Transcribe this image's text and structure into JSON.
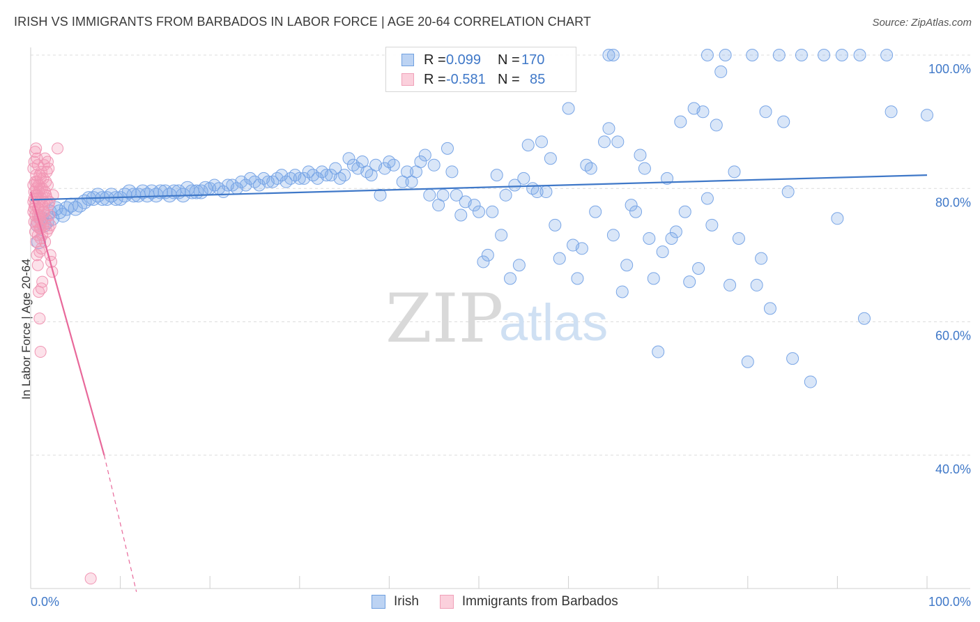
{
  "header": {
    "title": "IRISH VS IMMIGRANTS FROM BARBADOS IN LABOR FORCE | AGE 20-64 CORRELATION CHART",
    "source": "Source: ZipAtlas.com"
  },
  "watermark": {
    "zip": "ZIP",
    "atlas": "atlas"
  },
  "legend_top": {
    "rows": [
      {
        "r_label": "R =",
        "r_value": "0.099",
        "n_label": "N =",
        "n_value": "170",
        "color": "#6fa0e0",
        "fill": "#bcd3f3"
      },
      {
        "r_label": "R =",
        "r_value": "-0.581",
        "n_label": "N =",
        "n_value": "85",
        "color": "#f0a0b8",
        "fill": "#fbd0dc"
      }
    ]
  },
  "legend_bottom": {
    "items": [
      {
        "label": "Irish",
        "color": "#6fa0e0",
        "fill": "#bcd3f3"
      },
      {
        "label": "Immigrants from Barbados",
        "color": "#f0a0b8",
        "fill": "#fbd0dc"
      }
    ]
  },
  "chart_data": {
    "type": "scatter",
    "ylabel": "In Labor Force | Age 20-64",
    "xlabel": "",
    "xlim": [
      0,
      100
    ],
    "ylim": [
      20,
      100
    ],
    "x_tick_labels": [
      "0.0%",
      "100.0%"
    ],
    "y_ticks": [
      40,
      60,
      80,
      100
    ],
    "y_tick_labels": [
      "40.0%",
      "60.0%",
      "80.0%",
      "100.0%"
    ],
    "grid": "horizontal dashed",
    "colors": {
      "irish": "#3f78c8",
      "irish_fill": "rgba(120,165,230,0.28)",
      "irish_edge": "#78a5e6",
      "barbados": "#e8689a",
      "barbados_fill": "rgba(245,150,180,0.28)",
      "barbados_edge": "#f096b4"
    },
    "series": [
      {
        "name": "Irish",
        "trend": {
          "x0": 0,
          "y0": 78.3,
          "x1": 100,
          "y1": 82.0
        },
        "points": [
          [
            0.8,
            74.5
          ],
          [
            0.9,
            72.0
          ],
          [
            1.2,
            75.5
          ],
          [
            1.5,
            74.5
          ],
          [
            1.8,
            75.0
          ],
          [
            2.1,
            76.5
          ],
          [
            2.4,
            75.5
          ],
          [
            2.8,
            77.0
          ],
          [
            3.2,
            76.5
          ],
          [
            3.6,
            76.0
          ],
          [
            4.0,
            77.0
          ],
          [
            4.5,
            77.5
          ],
          [
            5.0,
            77.0
          ],
          [
            5.5,
            77.5
          ],
          [
            6.0,
            78.0
          ],
          [
            6.5,
            78.5
          ],
          [
            7.0,
            78.5
          ],
          [
            7.5,
            79.0
          ],
          [
            8.0,
            78.5
          ],
          [
            8.5,
            78.5
          ],
          [
            9.0,
            79.0
          ],
          [
            9.5,
            78.5
          ],
          [
            10.0,
            78.5
          ],
          [
            10.5,
            79.0
          ],
          [
            11.0,
            79.5
          ],
          [
            11.5,
            79.0
          ],
          [
            12.0,
            79.0
          ],
          [
            12.5,
            79.5
          ],
          [
            13.0,
            79.0
          ],
          [
            13.5,
            79.5
          ],
          [
            14.0,
            79.0
          ],
          [
            14.5,
            79.5
          ],
          [
            15.0,
            79.5
          ],
          [
            15.5,
            79.0
          ],
          [
            16.0,
            79.5
          ],
          [
            16.5,
            79.5
          ],
          [
            17.0,
            79.0
          ],
          [
            17.5,
            80.0
          ],
          [
            18.0,
            79.5
          ],
          [
            18.5,
            79.5
          ],
          [
            19.0,
            79.5
          ],
          [
            19.5,
            80.0
          ],
          [
            20.0,
            80.0
          ],
          [
            20.5,
            80.5
          ],
          [
            21.0,
            80.0
          ],
          [
            21.5,
            79.5
          ],
          [
            22.0,
            80.5
          ],
          [
            22.5,
            80.5
          ],
          [
            23.0,
            80.0
          ],
          [
            23.5,
            81.0
          ],
          [
            24.0,
            80.5
          ],
          [
            24.5,
            81.5
          ],
          [
            25.0,
            81.0
          ],
          [
            25.5,
            80.5
          ],
          [
            26.0,
            81.5
          ],
          [
            26.5,
            81.0
          ],
          [
            27.0,
            81.0
          ],
          [
            27.5,
            81.5
          ],
          [
            28.0,
            82.0
          ],
          [
            28.5,
            81.0
          ],
          [
            29.0,
            81.5
          ],
          [
            29.5,
            82.0
          ],
          [
            30.0,
            81.5
          ],
          [
            30.5,
            81.5
          ],
          [
            31.0,
            82.5
          ],
          [
            31.5,
            82.0
          ],
          [
            32.0,
            81.5
          ],
          [
            32.5,
            82.5
          ],
          [
            33.0,
            82.0
          ],
          [
            33.5,
            82.0
          ],
          [
            34.0,
            83.0
          ],
          [
            34.5,
            81.5
          ],
          [
            35.0,
            82.0
          ],
          [
            35.5,
            84.5
          ],
          [
            36.0,
            83.5
          ],
          [
            36.5,
            83.0
          ],
          [
            37.0,
            84.0
          ],
          [
            37.5,
            82.5
          ],
          [
            38.0,
            82.0
          ],
          [
            38.5,
            83.5
          ],
          [
            39.0,
            79.0
          ],
          [
            39.5,
            83.0
          ],
          [
            40.0,
            84.0
          ],
          [
            40.5,
            83.5
          ],
          [
            41.5,
            81.0
          ],
          [
            42.0,
            82.5
          ],
          [
            42.5,
            81.0
          ],
          [
            43.0,
            82.5
          ],
          [
            43.5,
            84.0
          ],
          [
            44.0,
            85.0
          ],
          [
            44.5,
            79.0
          ],
          [
            45.0,
            83.5
          ],
          [
            45.5,
            77.5
          ],
          [
            46.0,
            79.0
          ],
          [
            46.5,
            86.0
          ],
          [
            47.0,
            82.5
          ],
          [
            47.5,
            79.0
          ],
          [
            48.0,
            76.0
          ],
          [
            48.5,
            78.0
          ],
          [
            49.5,
            77.5
          ],
          [
            50.0,
            76.5
          ],
          [
            50.5,
            69.0
          ],
          [
            51.0,
            70.0
          ],
          [
            51.5,
            76.5
          ],
          [
            52.0,
            82.0
          ],
          [
            52.5,
            73.0
          ],
          [
            53.0,
            79.0
          ],
          [
            53.5,
            66.5
          ],
          [
            54.0,
            80.5
          ],
          [
            54.5,
            68.5
          ],
          [
            55.0,
            81.5
          ],
          [
            55.5,
            86.5
          ],
          [
            56.0,
            80.0
          ],
          [
            56.5,
            79.5
          ],
          [
            57.0,
            87.0
          ],
          [
            57.5,
            79.5
          ],
          [
            58.0,
            84.5
          ],
          [
            58.5,
            74.5
          ],
          [
            59.0,
            69.5
          ],
          [
            60.0,
            92.0
          ],
          [
            60.5,
            71.5
          ],
          [
            61.0,
            66.5
          ],
          [
            61.5,
            71.0
          ],
          [
            62.0,
            83.5
          ],
          [
            62.5,
            83.0
          ],
          [
            63.0,
            76.5
          ],
          [
            64.0,
            87.0
          ],
          [
            64.5,
            89.0
          ],
          [
            65.0,
            73.0
          ],
          [
            65.5,
            87.0
          ],
          [
            66.0,
            64.5
          ],
          [
            66.5,
            68.5
          ],
          [
            67.0,
            77.5
          ],
          [
            67.5,
            76.5
          ],
          [
            68.0,
            85.0
          ],
          [
            68.5,
            83.0
          ],
          [
            69.0,
            72.5
          ],
          [
            69.5,
            66.5
          ],
          [
            70.0,
            55.5
          ],
          [
            70.5,
            70.5
          ],
          [
            71.0,
            81.5
          ],
          [
            71.5,
            72.5
          ],
          [
            72.0,
            73.5
          ],
          [
            72.5,
            90.0
          ],
          [
            73.0,
            76.5
          ],
          [
            73.5,
            66.0
          ],
          [
            74.0,
            92.0
          ],
          [
            74.5,
            68.0
          ],
          [
            75.0,
            91.5
          ],
          [
            75.5,
            78.5
          ],
          [
            76.0,
            74.5
          ],
          [
            76.5,
            89.5
          ],
          [
            77.0,
            97.5
          ],
          [
            77.5,
            100.0
          ],
          [
            78.0,
            65.5
          ],
          [
            78.5,
            82.5
          ],
          [
            79.0,
            72.5
          ],
          [
            80.0,
            54.0
          ],
          [
            80.5,
            100.0
          ],
          [
            81.0,
            65.5
          ],
          [
            81.5,
            69.5
          ],
          [
            82.0,
            91.5
          ],
          [
            82.5,
            62.0
          ],
          [
            83.5,
            100.0
          ],
          [
            84.0,
            90.0
          ],
          [
            84.5,
            79.5
          ],
          [
            85.0,
            54.5
          ],
          [
            86.0,
            100.0
          ],
          [
            87.0,
            51.0
          ],
          [
            88.5,
            100.0
          ],
          [
            90.0,
            75.5
          ],
          [
            90.5,
            100.0
          ],
          [
            92.5,
            100.0
          ],
          [
            93.0,
            60.5
          ],
          [
            95.5,
            100.0
          ],
          [
            96.0,
            91.5
          ],
          [
            100.0,
            91.0
          ],
          [
            64.5,
            100.0
          ],
          [
            65.0,
            100.0
          ],
          [
            75.5,
            100.0
          ]
        ]
      },
      {
        "name": "Immigrants from Barbados",
        "trend": {
          "x0": 0,
          "y0": 79.5,
          "x1": 8.2,
          "y1": 40.0,
          "dash_x1": 11.8,
          "dash_y1": 19.5
        },
        "points": [
          [
            0.3,
            80.5
          ],
          [
            0.4,
            78.5
          ],
          [
            0.5,
            77.5
          ],
          [
            0.6,
            79.0
          ],
          [
            0.7,
            81.0
          ],
          [
            0.8,
            76.0
          ],
          [
            0.9,
            79.5
          ],
          [
            1.0,
            78.0
          ],
          [
            1.1,
            80.0
          ],
          [
            1.2,
            82.5
          ],
          [
            0.4,
            75.0
          ],
          [
            0.5,
            73.5
          ],
          [
            0.6,
            72.0
          ],
          [
            0.7,
            70.0
          ],
          [
            0.8,
            68.5
          ],
          [
            0.9,
            64.5
          ],
          [
            1.0,
            60.5
          ],
          [
            1.1,
            55.5
          ],
          [
            1.2,
            65.0
          ],
          [
            1.3,
            66.0
          ],
          [
            0.3,
            83.0
          ],
          [
            0.4,
            84.0
          ],
          [
            0.5,
            85.5
          ],
          [
            0.6,
            86.0
          ],
          [
            0.7,
            84.5
          ],
          [
            0.8,
            79.0
          ],
          [
            0.9,
            77.0
          ],
          [
            1.0,
            76.0
          ],
          [
            1.1,
            74.0
          ],
          [
            1.2,
            78.5
          ],
          [
            1.3,
            80.0
          ],
          [
            1.4,
            81.5
          ],
          [
            1.5,
            83.5
          ],
          [
            1.6,
            84.5
          ],
          [
            1.7,
            79.0
          ],
          [
            1.8,
            78.5
          ],
          [
            1.9,
            80.5
          ],
          [
            2.0,
            77.5
          ],
          [
            2.1,
            76.0
          ],
          [
            2.2,
            74.5
          ],
          [
            0.3,
            78.0
          ],
          [
            0.4,
            79.5
          ],
          [
            0.5,
            81.0
          ],
          [
            0.6,
            80.0
          ],
          [
            0.7,
            78.5
          ],
          [
            0.8,
            77.0
          ],
          [
            0.9,
            75.5
          ],
          [
            1.0,
            74.0
          ],
          [
            1.1,
            72.5
          ],
          [
            1.2,
            71.0
          ],
          [
            1.3,
            73.0
          ],
          [
            1.4,
            76.5
          ],
          [
            1.5,
            78.0
          ],
          [
            1.6,
            79.5
          ],
          [
            1.7,
            81.0
          ],
          [
            1.8,
            82.5
          ],
          [
            1.9,
            84.0
          ],
          [
            2.0,
            83.0
          ],
          [
            2.1,
            78.0
          ],
          [
            2.2,
            70.0
          ],
          [
            2.3,
            69.0
          ],
          [
            2.4,
            67.5
          ],
          [
            0.3,
            76.5
          ],
          [
            0.5,
            76.0
          ],
          [
            0.7,
            75.0
          ],
          [
            0.9,
            80.5
          ],
          [
            1.1,
            81.5
          ],
          [
            1.3,
            77.5
          ],
          [
            1.5,
            76.5
          ],
          [
            1.7,
            75.5
          ],
          [
            2.5,
            79.0
          ],
          [
            3.0,
            86.0
          ],
          [
            0.6,
            82.0
          ],
          [
            0.8,
            83.5
          ],
          [
            1.0,
            82.0
          ],
          [
            1.2,
            75.0
          ],
          [
            1.4,
            74.5
          ],
          [
            1.6,
            72.0
          ],
          [
            1.8,
            73.5
          ],
          [
            2.0,
            74.0
          ],
          [
            0.4,
            77.0
          ],
          [
            0.6,
            74.5
          ],
          [
            0.8,
            73.0
          ],
          [
            6.7,
            21.5
          ],
          [
            1.0,
            70.5
          ]
        ]
      }
    ]
  }
}
